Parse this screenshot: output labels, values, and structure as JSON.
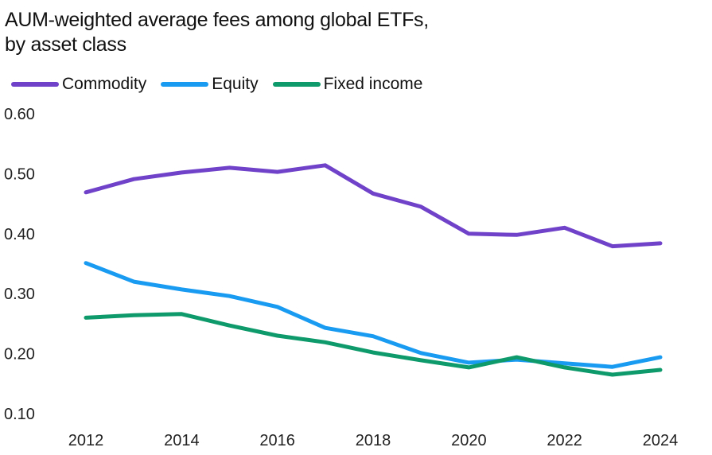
{
  "chart_data": {
    "type": "line",
    "title": "AUM-weighted average fees among global ETFs, by asset class",
    "title_lines": [
      "AUM-weighted average fees among global ETFs,",
      "by asset class"
    ],
    "xlabel": "",
    "ylabel": "",
    "x": [
      2012,
      2013,
      2014,
      2015,
      2016,
      2017,
      2018,
      2019,
      2020,
      2021,
      2022,
      2023,
      2024
    ],
    "x_ticks": [
      "2012",
      "2014",
      "2016",
      "2018",
      "2020",
      "2022",
      "2024"
    ],
    "y_ticks": [
      "0.10",
      "0.20",
      "0.30",
      "0.40",
      "0.50",
      "0.60"
    ],
    "ylim": [
      0.1,
      0.6
    ],
    "grid": false,
    "legend_position": "top-left",
    "series": [
      {
        "name": "Commodity",
        "color": "#6F42C9",
        "values": [
          0.469,
          0.491,
          0.502,
          0.51,
          0.503,
          0.514,
          0.467,
          0.445,
          0.4,
          0.398,
          0.41,
          0.379,
          0.384
        ]
      },
      {
        "name": "Equity",
        "color": "#1A9BF2",
        "values": [
          0.351,
          0.32,
          0.307,
          0.296,
          0.278,
          0.243,
          0.229,
          0.201,
          0.185,
          0.19,
          0.184,
          0.178,
          0.194
        ]
      },
      {
        "name": "Fixed income",
        "color": "#0E9A6A",
        "values": [
          0.26,
          0.264,
          0.266,
          0.247,
          0.23,
          0.219,
          0.202,
          0.189,
          0.177,
          0.194,
          0.177,
          0.165,
          0.173
        ]
      }
    ]
  }
}
